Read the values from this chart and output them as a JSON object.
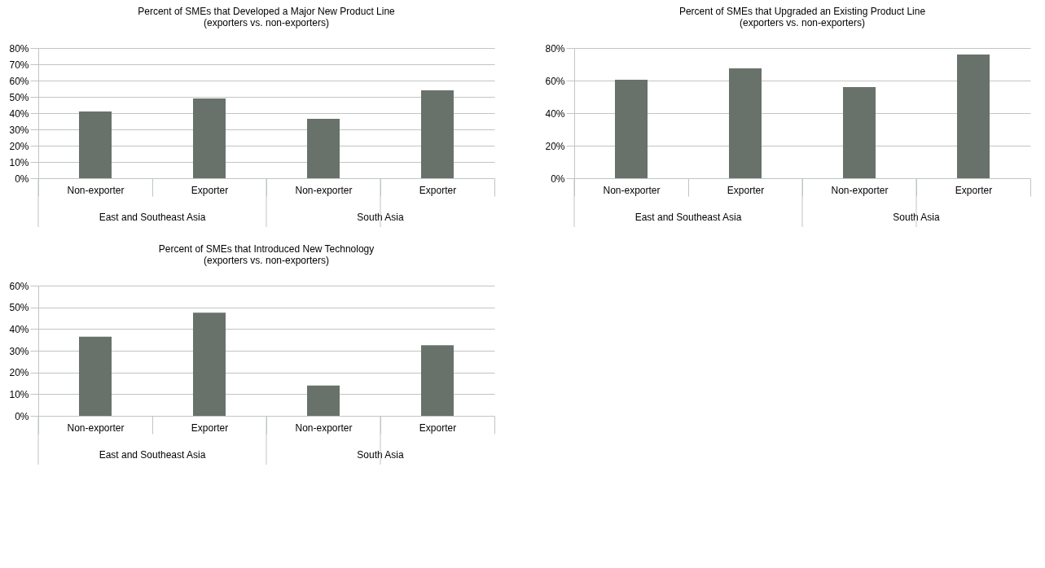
{
  "chart_data": [
    {
      "type": "bar",
      "title": "Percent of SMEs that Developed a Major New Product Line (exporters vs. non-exporters)",
      "categories": [
        "Non-exporter",
        "Exporter",
        "Non-exporter",
        "Exporter"
      ],
      "values": [
        41,
        49,
        36.5,
        54
      ],
      "color": "#68726a",
      "ylim": [
        0,
        80
      ],
      "yticks": [
        {
          "value": 0,
          "label": "0%"
        },
        {
          "value": 10,
          "label": "10%"
        },
        {
          "value": 20,
          "label": "20%"
        },
        {
          "value": 30,
          "label": "30%"
        },
        {
          "value": 40,
          "label": "40%"
        },
        {
          "value": 50,
          "label": "50%"
        },
        {
          "value": 60,
          "label": "60%"
        },
        {
          "value": 70,
          "label": "70%"
        },
        {
          "value": 80,
          "label": "80%"
        }
      ],
      "grid": "y",
      "annotations": [
        "East and Southeast Asia",
        "South Asia"
      ]
    },
    {
      "type": "bar",
      "title": "Percent of SMEs that Upgraded an Existing Product Line (exporters vs. non-exporters)",
      "categories": [
        "Non-exporter",
        "Exporter",
        "Non-exporter",
        "Exporter"
      ],
      "values": [
        60.5,
        67.5,
        56,
        76
      ],
      "color": "#68726a",
      "ylim": [
        0,
        80
      ],
      "yticks": [
        {
          "value": 0,
          "label": "0%"
        },
        {
          "value": 20,
          "label": "20%"
        },
        {
          "value": 40,
          "label": "40%"
        },
        {
          "value": 60,
          "label": "60%"
        },
        {
          "value": 80,
          "label": "80%"
        }
      ],
      "grid": "y",
      "annotations": [
        "East and Southeast Asia",
        "South Asia"
      ]
    },
    {
      "type": "bar",
      "title": "Percent of SMEs that Introduced New Technology (exporters vs. non-exporters)",
      "categories": [
        "Non-exporter",
        "Exporter",
        "Non-exporter",
        "Exporter"
      ],
      "values": [
        36.5,
        47.5,
        14,
        32.5
      ],
      "color": "#68726a",
      "ylim": [
        0,
        60
      ],
      "yticks": [
        {
          "value": 0,
          "label": "0%"
        },
        {
          "value": 10,
          "label": "10%"
        },
        {
          "value": 20,
          "label": "20%"
        },
        {
          "value": 30,
          "label": "30%"
        },
        {
          "value": 40,
          "label": "40%"
        },
        {
          "value": 50,
          "label": "50%"
        },
        {
          "value": 60,
          "label": "60%"
        }
      ],
      "grid": "y",
      "annotations": [
        "East and Southeast Asia",
        "South Asia"
      ]
    }
  ]
}
